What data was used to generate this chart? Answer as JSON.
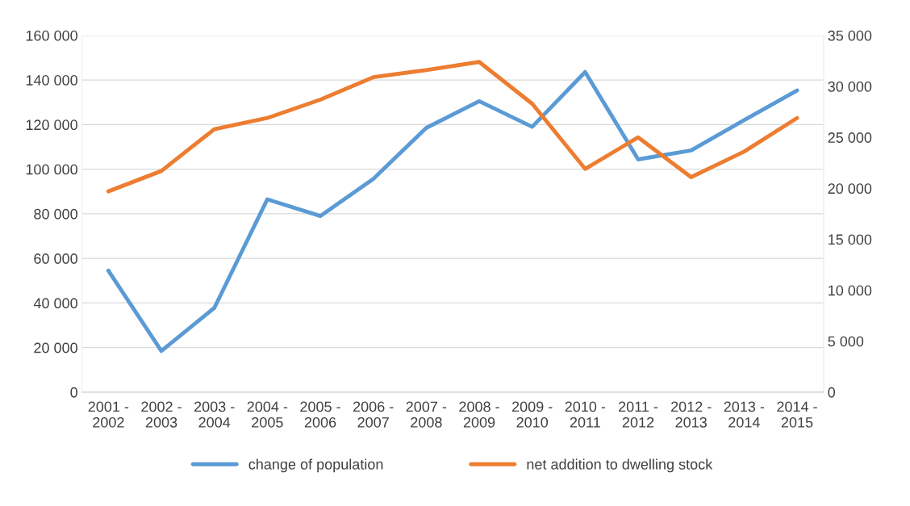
{
  "chart_data": {
    "type": "line",
    "categories": [
      "2001 -\n2002",
      "2002 -\n2003",
      "2003 -\n2004",
      "2004 -\n2005",
      "2005 -\n2006",
      "2006 -\n2007",
      "2007 -\n2008",
      "2008 -\n2009",
      "2009 -\n2010",
      "2010 -\n2011",
      "2011 -\n2012",
      "2012 -\n2013",
      "2013 -\n2014",
      "2014 -\n2015"
    ],
    "series": [
      {
        "name": "change of population",
        "color": "#5b9bd5",
        "values": [
          54500,
          18500,
          37800,
          86500,
          79000,
          95600,
          118500,
          130500,
          119000,
          143600,
          104400,
          108400,
          122000,
          135300
        ]
      },
      {
        "name": "net addition to dwelling stock",
        "color": "#ed7d31",
        "axis": "y2",
        "values": [
          19700,
          21700,
          25800,
          26900,
          28700,
          30900,
          31600,
          32400,
          28300,
          21900,
          25000,
          21100,
          23600,
          26900
        ]
      }
    ],
    "ylim": [
      0,
      160000
    ],
    "yticks": [
      0,
      {
        "value": 20000,
        "label": "20 000"
      },
      {
        "value": 40000,
        "label": "40 000"
      },
      {
        "value": 60000,
        "label": "60 000"
      },
      {
        "value": 80000,
        "label": "80 000"
      },
      {
        "value": 100000,
        "label": "100 000"
      },
      {
        "value": 120000,
        "label": "120 000"
      },
      {
        "value": 140000,
        "label": "140 000"
      },
      {
        "value": 160000,
        "label": "160 000"
      }
    ],
    "y2lim": [
      0,
      35000
    ],
    "y2ticks": [
      0,
      {
        "value": 5000,
        "label": "5 000"
      },
      {
        "value": 10000,
        "label": "10 000"
      },
      {
        "value": 15000,
        "label": "15 000"
      },
      {
        "value": 20000,
        "label": "20 000"
      },
      {
        "value": 25000,
        "label": "25 000"
      },
      {
        "value": 30000,
        "label": "30 000"
      },
      {
        "value": 35000,
        "label": "35 000"
      }
    ],
    "grid": "y",
    "legend": "bottom",
    "marker": "none",
    "line_style": "solid"
  }
}
